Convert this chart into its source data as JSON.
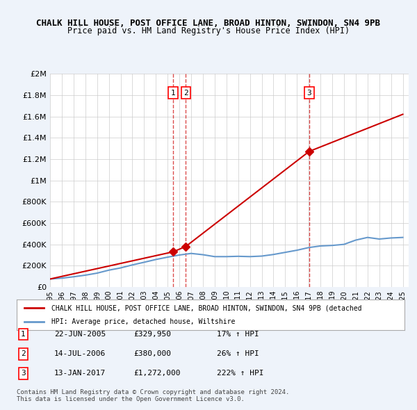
{
  "title": "CHALK HILL HOUSE, POST OFFICE LANE, BROAD HINTON, SWINDON, SN4 9PB",
  "subtitle": "Price paid vs. HM Land Registry's House Price Index (HPI)",
  "xlim": [
    1995,
    2025.5
  ],
  "ylim": [
    0,
    2000000
  ],
  "yticks": [
    0,
    200000,
    400000,
    600000,
    800000,
    1000000,
    1200000,
    1400000,
    1600000,
    1800000,
    2000000
  ],
  "ytick_labels": [
    "£0",
    "£200K",
    "£400K",
    "£600K",
    "£800K",
    "£1M",
    "£1.2M",
    "£1.4M",
    "£1.6M",
    "£1.8M",
    "£2M"
  ],
  "xticks": [
    1995,
    1996,
    1997,
    1998,
    1999,
    2000,
    2001,
    2002,
    2003,
    2004,
    2005,
    2006,
    2007,
    2008,
    2009,
    2010,
    2011,
    2012,
    2013,
    2014,
    2015,
    2016,
    2017,
    2018,
    2019,
    2020,
    2021,
    2022,
    2023,
    2024,
    2025
  ],
  "hpi_years": [
    1995,
    1996,
    1997,
    1998,
    1999,
    2000,
    2001,
    2002,
    2003,
    2004,
    2005,
    2006,
    2007,
    2008,
    2009,
    2010,
    2011,
    2012,
    2013,
    2014,
    2015,
    2016,
    2017,
    2018,
    2019,
    2020,
    2021,
    2022,
    2023,
    2024,
    2025
  ],
  "hpi_values": [
    75000,
    83000,
    96000,
    111000,
    130000,
    158000,
    179000,
    207000,
    232000,
    258000,
    280000,
    300000,
    315000,
    303000,
    285000,
    285000,
    288000,
    285000,
    290000,
    305000,
    325000,
    345000,
    370000,
    385000,
    390000,
    400000,
    440000,
    465000,
    450000,
    460000,
    465000
  ],
  "property_years": [
    1995,
    2005.47,
    2006.54,
    2017.04,
    2025
  ],
  "property_values": [
    75000,
    329950,
    380000,
    1272000,
    1620000
  ],
  "sale_points": [
    {
      "year": 2005.47,
      "value": 329950,
      "label": "1"
    },
    {
      "year": 2006.54,
      "value": 380000,
      "label": "2"
    },
    {
      "year": 2017.04,
      "value": 1272000,
      "label": "3"
    }
  ],
  "legend_property": "CHALK HILL HOUSE, POST OFFICE LANE, BROAD HINTON, SWINDON, SN4 9PB (detached",
  "legend_hpi": "HPI: Average price, detached house, Wiltshire",
  "table_rows": [
    {
      "num": "1",
      "date": "22-JUN-2005",
      "price": "£329,950",
      "hpi": "17% ↑ HPI"
    },
    {
      "num": "2",
      "date": "14-JUL-2006",
      "price": "£380,000",
      "hpi": "26% ↑ HPI"
    },
    {
      "num": "3",
      "date": "13-JAN-2017",
      "price": "£1,272,000",
      "hpi": "222% ↑ HPI"
    }
  ],
  "footer": "Contains HM Land Registry data © Crown copyright and database right 2024.\nThis data is licensed under the Open Government Licence v3.0.",
  "property_color": "#cc0000",
  "hpi_color": "#6699cc",
  "background_color": "#eef3fa",
  "plot_bg_color": "#ffffff",
  "grid_color": "#cccccc"
}
